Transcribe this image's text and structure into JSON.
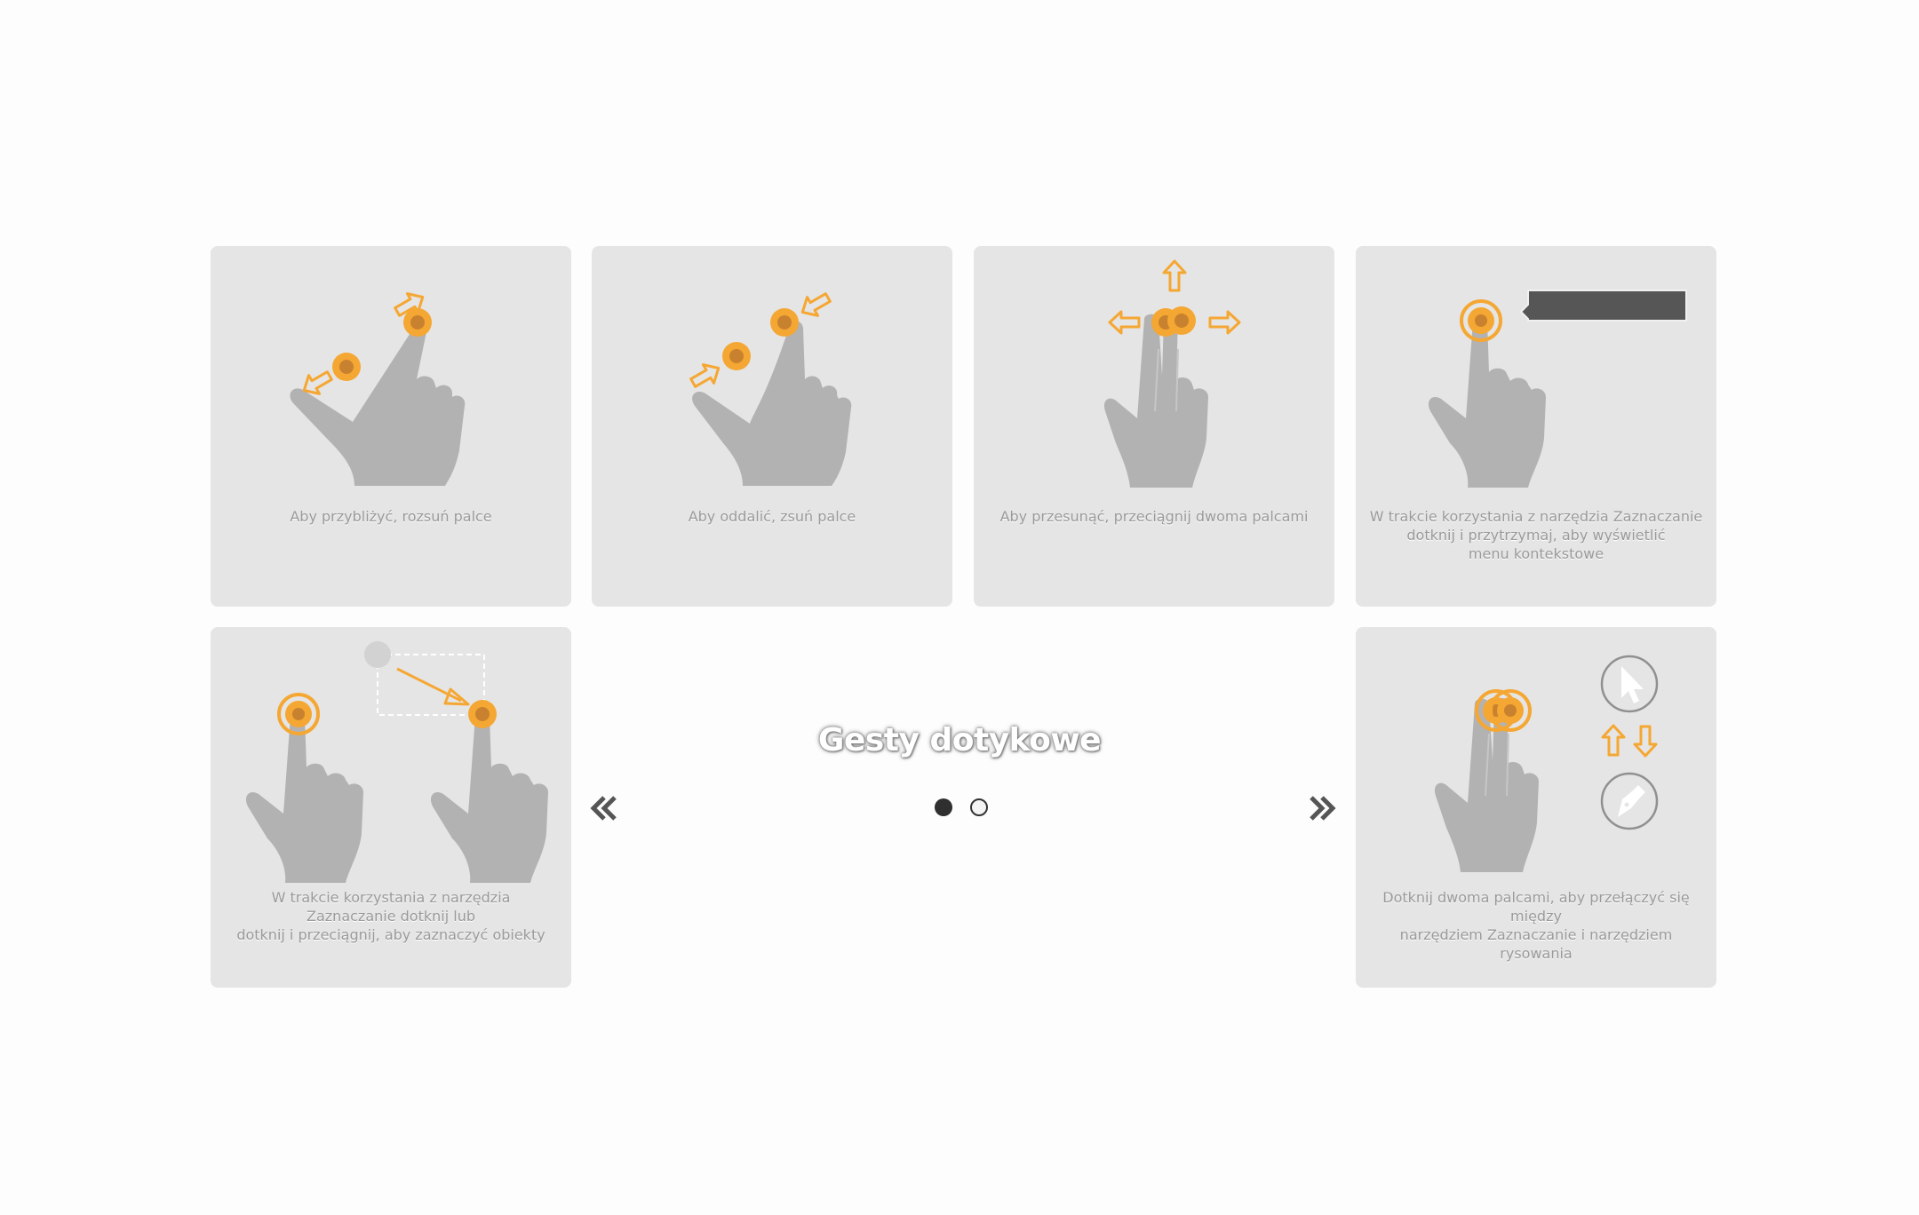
{
  "gestures": [
    {
      "caption": "Aby przybliżyć, rozsuń palce"
    },
    {
      "caption": "Aby oddalić, zsuń palce"
    },
    {
      "caption": "Aby przesunąć, przeciągnij dwoma palcami"
    },
    {
      "caption": "W trakcie korzystania z narzędzia Zaznaczanie\ndotknij i przytrzymaj, aby wyświetlić\nmenu kontekstowe"
    },
    {
      "caption": "W trakcie korzystania z narzędzia\nZaznaczanie dotknij lub\ndotknij i przeciągnij, aby zaznaczyć obiekty"
    },
    {
      "caption": "Dotknij dwoma palcami, aby przełączyć się między\nnarzędziem Zaznaczanie i narzędziem rysowania"
    }
  ],
  "title": "Gesty dotykowe",
  "pagination": {
    "current_page": 1,
    "total_pages": 2
  },
  "icons": {
    "prev": "double-chevron-left-icon",
    "next": "double-chevron-right-icon",
    "hand": "hand-icon",
    "arrow": "arrow-icon",
    "cursor": "cursor-icon",
    "pen": "pen-icon"
  },
  "colors": {
    "card_bg": "#e5e5e5",
    "hand": "#b2b2b2",
    "accent": "#f5a733",
    "fingertip": "#c8822f",
    "dot_active": "#2f2f2f"
  }
}
